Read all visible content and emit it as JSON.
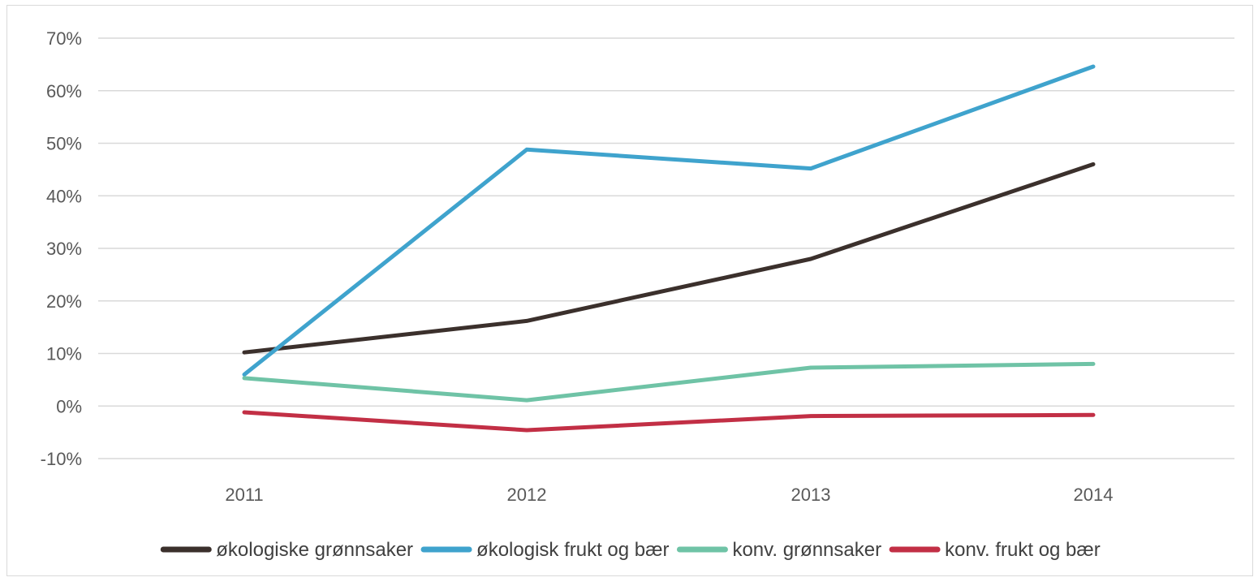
{
  "chart_data": {
    "type": "line",
    "title": "",
    "xlabel": "",
    "ylabel": "",
    "categories": [
      "2011",
      "2012",
      "2013",
      "2014"
    ],
    "y_ticks": [
      "70%",
      "60%",
      "50%",
      "40%",
      "30%",
      "20%",
      "10%",
      "0%",
      "-10%"
    ],
    "ylim": [
      -10,
      70
    ],
    "y_unit": "%",
    "grid": true,
    "legend_position": "bottom",
    "series": [
      {
        "name": "økologiske grønnsaker",
        "color": "#3b302c",
        "values": [
          10.2,
          16.2,
          28.0,
          46.0
        ]
      },
      {
        "name": "økologisk frukt og bær",
        "color": "#3fa3cd",
        "values": [
          6.0,
          48.8,
          45.2,
          64.6
        ]
      },
      {
        "name": "konv. grønnsaker",
        "color": "#6fc3a6",
        "values": [
          5.3,
          1.1,
          7.3,
          8.0
        ]
      },
      {
        "name": "konv. frukt og bær",
        "color": "#c22f45",
        "values": [
          -1.2,
          -4.6,
          -1.9,
          -1.7
        ]
      }
    ]
  }
}
